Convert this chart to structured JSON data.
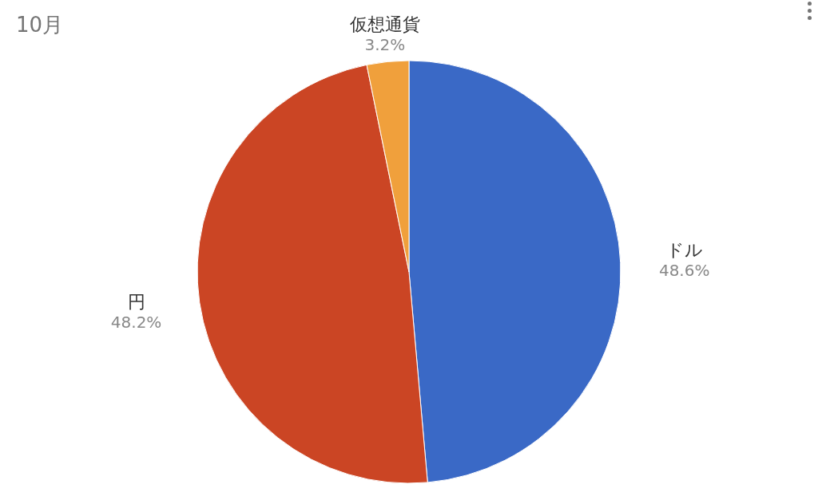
{
  "chart_data": {
    "type": "pie",
    "title": "10月",
    "categories": [
      "ドル",
      "円",
      "仮想通貨"
    ],
    "values": [
      48.6,
      48.2,
      3.2
    ],
    "colors": [
      "#3a69c6",
      "#cb4524",
      "#f0a03c"
    ],
    "value_labels": [
      "48.6%",
      "48.2%",
      "3.2%"
    ]
  }
}
